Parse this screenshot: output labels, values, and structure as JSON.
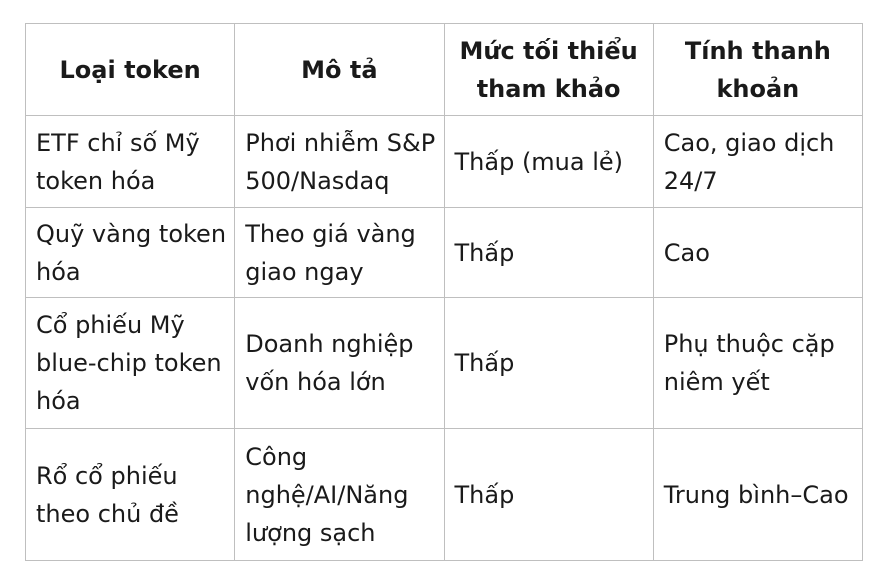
{
  "table": {
    "title": "token-comparison-table",
    "headers": [
      "Loại token",
      "Mô tả",
      "Mức tối thiểu tham khảo",
      "Tính thanh khoản"
    ],
    "rows": [
      [
        "ETF chỉ số Mỹ token hóa",
        "Phơi nhiễm S&P 500/Nasdaq",
        "Thấp (mua lẻ)",
        "Cao, giao dịch 24/7"
      ],
      [
        "Quỹ vàng token hóa",
        "Theo giá vàng giao ngay",
        "Thấp",
        "Cao"
      ],
      [
        "Cổ phiếu Mỹ blue-chip token hóa",
        "Doanh nghiệp vốn hóa lớn",
        "Thấp",
        "Phụ thuộc cặp niêm yết"
      ],
      [
        "Rổ cổ phiếu theo chủ đề",
        "Công nghệ/AI/Năng lượng sạch",
        "Thấp",
        "Trung bình–Cao"
      ]
    ],
    "colors": {
      "border": "#bfbfbf",
      "text": "#1a1a1a",
      "background": "#ffffff"
    }
  }
}
